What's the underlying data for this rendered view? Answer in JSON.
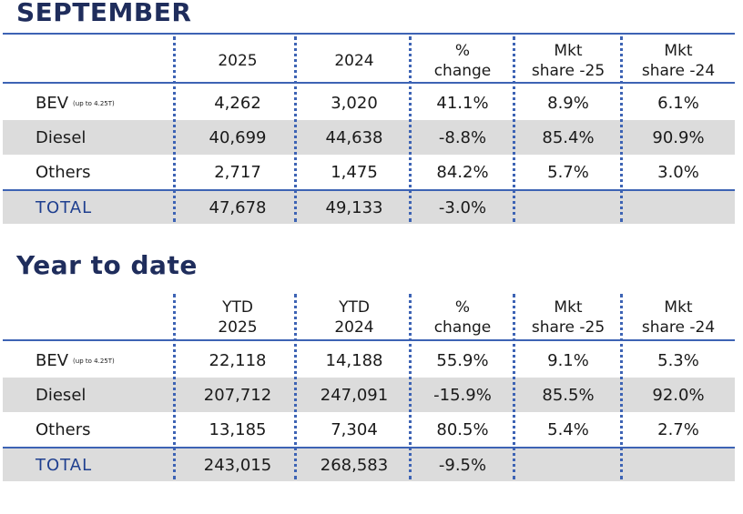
{
  "september": {
    "title": "SEPTEMBER",
    "headers": [
      {
        "l1": "",
        "l2": "2025"
      },
      {
        "l1": "",
        "l2": "2024"
      },
      {
        "l1": "%",
        "l2": "change"
      },
      {
        "l1": "Mkt",
        "l2": "share -25"
      },
      {
        "l1": "Mkt",
        "l2": "share -24"
      }
    ],
    "rows": [
      {
        "label": "BEV",
        "sub": "(up to 4.25T)",
        "values": [
          "4,262",
          "3,020",
          "41.1%",
          "8.9%",
          "6.1%"
        ]
      },
      {
        "label": "Diesel",
        "sub": "",
        "values": [
          "40,699",
          "44,638",
          "-8.8%",
          "85.4%",
          "90.9%"
        ]
      },
      {
        "label": "Others",
        "sub": "",
        "values": [
          "2,717",
          "1,475",
          "84.2%",
          "5.7%",
          "3.0%"
        ]
      },
      {
        "label": "TOTAL",
        "sub": "",
        "values": [
          "47,678",
          "49,133",
          "-3.0%",
          "",
          ""
        ]
      }
    ]
  },
  "ytd": {
    "title": "Year to date",
    "headers": [
      {
        "l1": "YTD",
        "l2": "2025"
      },
      {
        "l1": "YTD",
        "l2": "2024"
      },
      {
        "l1": "%",
        "l2": "change"
      },
      {
        "l1": "Mkt",
        "l2": "share -25"
      },
      {
        "l1": "Mkt",
        "l2": "share -24"
      }
    ],
    "rows": [
      {
        "label": "BEV",
        "sub": "(up to 4.25T)",
        "values": [
          "22,118",
          "14,188",
          "55.9%",
          "9.1%",
          "5.3%"
        ]
      },
      {
        "label": "Diesel",
        "sub": "",
        "values": [
          "207,712",
          "247,091",
          "-15.9%",
          "85.5%",
          "92.0%"
        ]
      },
      {
        "label": "Others",
        "sub": "",
        "values": [
          "13,185",
          "7,304",
          "80.5%",
          "5.4%",
          "2.7%"
        ]
      },
      {
        "label": "TOTAL",
        "sub": "",
        "values": [
          "243,015",
          "268,583",
          "-9.5%",
          "",
          ""
        ]
      }
    ]
  },
  "colors": {
    "title": "#1f2d5c",
    "rule": "#3d63b4",
    "total_text": "#1f3f8f",
    "row_shade": "#dcdcdc"
  }
}
